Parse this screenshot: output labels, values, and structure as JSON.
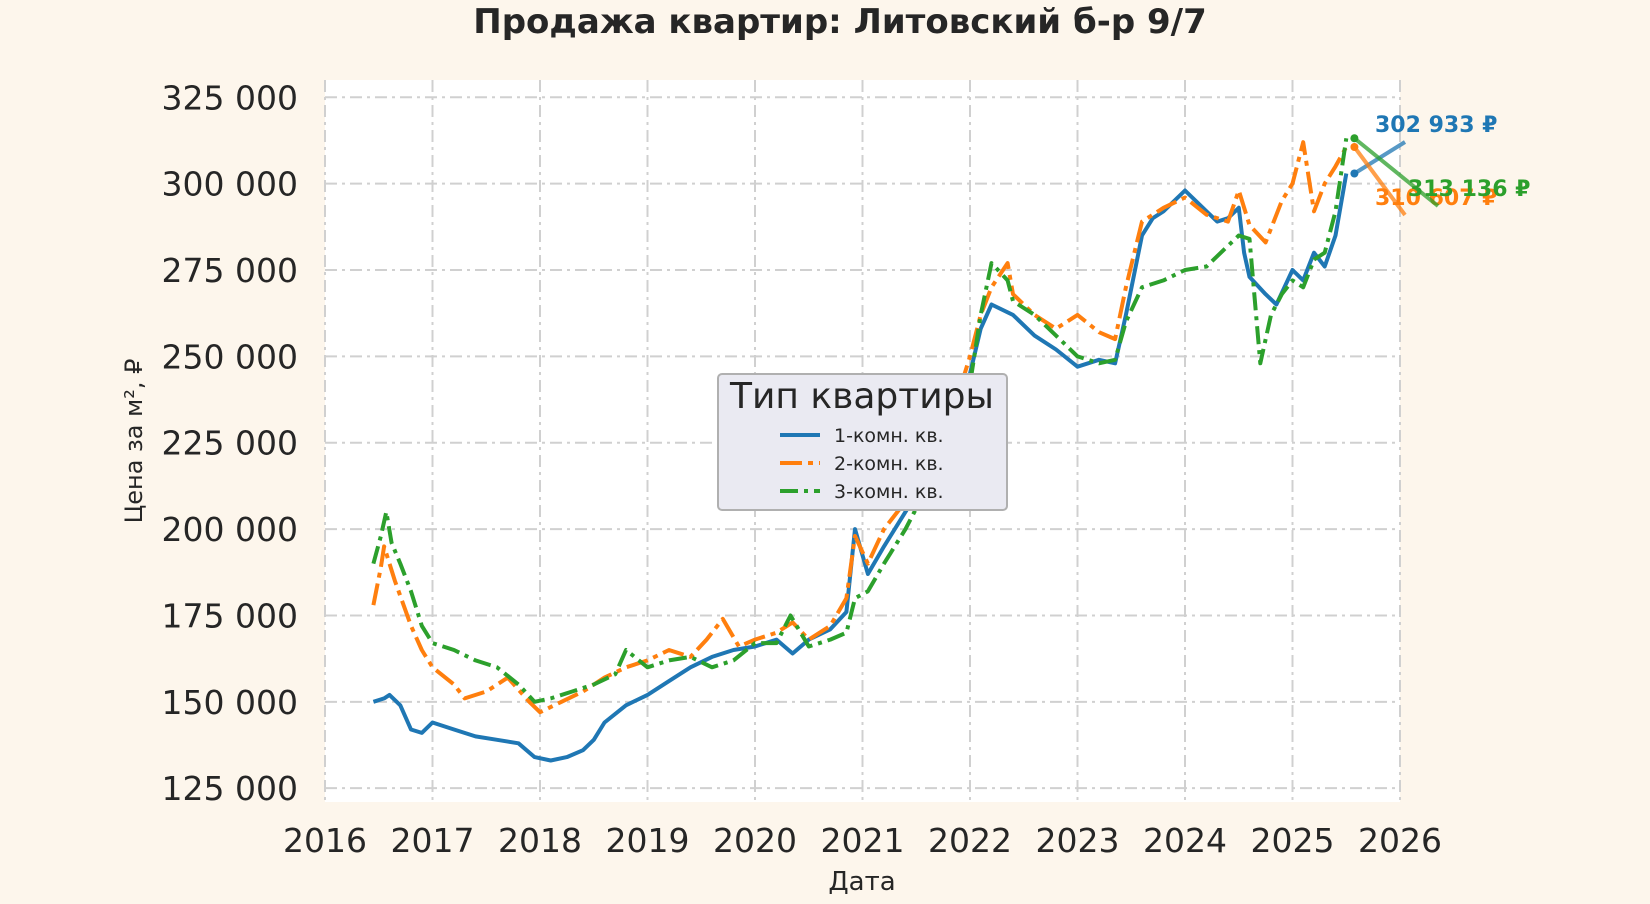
{
  "chart_data": {
    "type": "line",
    "title": "Продажа квартир: Литовский б-р 9/7",
    "xlabel": "Дата",
    "ylabel": "Цена за м², ₽",
    "xlim": [
      2016,
      2026
    ],
    "ylim": [
      121000,
      330000
    ],
    "x_ticks": [
      "2016",
      "2017",
      "2018",
      "2019",
      "2020",
      "2021",
      "2022",
      "2023",
      "2024",
      "2025",
      "2026"
    ],
    "y_ticks": [
      "125 000",
      "150 000",
      "175 000",
      "200 000",
      "225 000",
      "250 000",
      "275 000",
      "300 000",
      "325 000"
    ],
    "grid": true,
    "legend": {
      "title": "Тип квартиры",
      "position": "center",
      "entries": [
        "1-комн. кв.",
        "2-комн. кв.",
        "3-комн. кв."
      ]
    },
    "series": [
      {
        "name": "1-комн. кв.",
        "color": "#1f77b4",
        "x": [
          2016.45,
          2016.55,
          2016.6,
          2016.7,
          2016.8,
          2016.9,
          2017.0,
          2017.2,
          2017.4,
          2017.6,
          2017.8,
          2017.95,
          2018.1,
          2018.25,
          2018.4,
          2018.5,
          2018.6,
          2018.8,
          2019.0,
          2019.2,
          2019.4,
          2019.6,
          2019.8,
          2020.0,
          2020.2,
          2020.35,
          2020.5,
          2020.7,
          2020.85,
          2020.93,
          2021.05,
          2021.2,
          2021.4,
          2021.6,
          2021.8,
          2022.0,
          2022.1,
          2022.2,
          2022.4,
          2022.6,
          2022.8,
          2023.0,
          2023.2,
          2023.35,
          2023.45,
          2023.6,
          2023.7,
          2023.8,
          2024.0,
          2024.2,
          2024.3,
          2024.4,
          2024.5,
          2024.55,
          2024.6,
          2024.75,
          2024.85,
          2025.0,
          2025.1,
          2025.2,
          2025.3,
          2025.4,
          2025.5
        ],
        "values": [
          150000,
          151000,
          152000,
          149000,
          142000,
          141000,
          144000,
          142000,
          140000,
          139000,
          138000,
          134000,
          133000,
          134000,
          136000,
          139000,
          144000,
          149000,
          152000,
          156000,
          160000,
          163000,
          165000,
          166000,
          168000,
          164000,
          168000,
          171000,
          176000,
          200000,
          187000,
          195000,
          205000,
          215000,
          228000,
          245000,
          258000,
          265000,
          262000,
          256000,
          252000,
          247000,
          249000,
          248000,
          262000,
          285000,
          290000,
          292000,
          298000,
          292000,
          289000,
          290000,
          293000,
          280000,
          273000,
          268000,
          265000,
          275000,
          272000,
          280000,
          276000,
          285000,
          302933
        ]
      },
      {
        "name": "2-комн. кв.",
        "color": "#ff7f0e",
        "x": [
          2016.45,
          2016.52,
          2016.55,
          2016.65,
          2016.8,
          2016.9,
          2017.0,
          2017.2,
          2017.3,
          2017.5,
          2017.7,
          2017.9,
          2018.0,
          2018.2,
          2018.4,
          2018.6,
          2018.8,
          2019.0,
          2019.2,
          2019.4,
          2019.55,
          2019.7,
          2019.85,
          2020.0,
          2020.2,
          2020.35,
          2020.5,
          2020.7,
          2020.85,
          2020.93,
          2021.05,
          2021.2,
          2021.4,
          2021.6,
          2021.8,
          2022.0,
          2022.1,
          2022.2,
          2022.35,
          2022.4,
          2022.6,
          2022.8,
          2023.0,
          2023.2,
          2023.35,
          2023.45,
          2023.6,
          2023.8,
          2024.0,
          2024.2,
          2024.4,
          2024.5,
          2024.6,
          2024.75,
          2024.9,
          2025.0,
          2025.1,
          2025.2,
          2025.3,
          2025.4,
          2025.5
        ],
        "values": [
          178000,
          189000,
          195000,
          185000,
          172000,
          165000,
          160000,
          155000,
          151000,
          153000,
          157000,
          150000,
          147000,
          150000,
          153000,
          157000,
          160000,
          162000,
          165000,
          163000,
          168000,
          174000,
          166000,
          168000,
          170000,
          173000,
          168000,
          172000,
          180000,
          198000,
          190000,
          200000,
          208000,
          218000,
          230000,
          250000,
          262000,
          270000,
          277000,
          268000,
          262000,
          258000,
          262000,
          257000,
          255000,
          270000,
          289000,
          293000,
          296000,
          291000,
          289000,
          298000,
          288000,
          283000,
          295000,
          300000,
          312000,
          292000,
          300000,
          305000,
          310607
        ]
      },
      {
        "name": "3-комн. кв.",
        "color": "#2ca02c",
        "x": [
          2016.45,
          2016.52,
          2016.57,
          2016.62,
          2016.7,
          2016.8,
          2016.9,
          2017.0,
          2017.2,
          2017.4,
          2017.6,
          2017.8,
          2017.95,
          2018.1,
          2018.3,
          2018.5,
          2018.7,
          2018.8,
          2019.0,
          2019.2,
          2019.4,
          2019.6,
          2019.8,
          2020.0,
          2020.2,
          2020.33,
          2020.5,
          2020.7,
          2020.85,
          2020.93,
          2021.05,
          2021.2,
          2021.4,
          2021.6,
          2021.8,
          2022.0,
          2022.1,
          2022.2,
          2022.35,
          2022.4,
          2022.6,
          2022.8,
          2023.0,
          2023.2,
          2023.35,
          2023.45,
          2023.6,
          2023.8,
          2024.0,
          2024.2,
          2024.4,
          2024.5,
          2024.6,
          2024.7,
          2024.8,
          2024.9,
          2025.0,
          2025.1,
          2025.2,
          2025.3,
          2025.4,
          2025.5
        ],
        "values": [
          190000,
          198000,
          205000,
          196000,
          190000,
          182000,
          172000,
          167000,
          165000,
          162000,
          160000,
          155000,
          150000,
          151000,
          153000,
          155000,
          158000,
          165000,
          160000,
          162000,
          163000,
          160000,
          162000,
          167000,
          167000,
          175000,
          166000,
          168000,
          170000,
          180000,
          182000,
          190000,
          200000,
          212000,
          225000,
          242000,
          262000,
          277000,
          272000,
          266000,
          262000,
          256000,
          250000,
          248000,
          249000,
          260000,
          270000,
          272000,
          275000,
          276000,
          282000,
          285000,
          284000,
          248000,
          262000,
          268000,
          272000,
          270000,
          278000,
          280000,
          292000,
          313136
        ]
      }
    ],
    "annotations": [
      {
        "series": "1-комн. кв.",
        "text": "302 933 ₽",
        "color": "#1f77b4",
        "x": 2025.52,
        "y": 302933
      },
      {
        "series": "2-комн. кв.",
        "text": "310 607 ₽",
        "color": "#ff7f0e",
        "x": 2025.52,
        "y": 310607
      },
      {
        "series": "3-комн. кв.",
        "text": "313 136 ₽",
        "color": "#2ca02c",
        "x": 2025.52,
        "y": 313136
      }
    ]
  }
}
